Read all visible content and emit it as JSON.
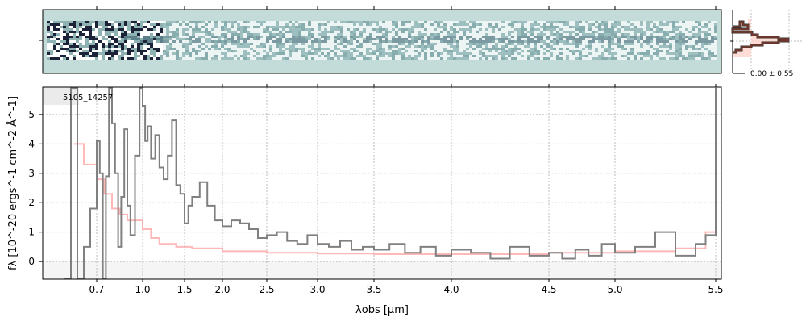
{
  "chart_data": {
    "type": "line",
    "object_label": "5105_14257",
    "xlabel": "λobs [μm]",
    "ylabel": "fλ [10^-20 ergs^-1 cm^-2 Å^-1]",
    "xlim": [
      0.55,
      5.53
    ],
    "ylim": [
      -0.6,
      5.93
    ],
    "grid": true,
    "x_ticks": [
      "0.7",
      "1.0",
      "1.5",
      "2.0",
      "2.5",
      "3.0",
      "3.5",
      "4.0",
      "4.5",
      "5.0",
      "5.5"
    ],
    "y_ticks": [
      "0",
      "1",
      "2",
      "3",
      "4",
      "5"
    ],
    "profile_label": "0.00 ± 0.55",
    "colors": {
      "data": "#808080",
      "model": "#ff9a9a",
      "twod_bg": "#c3dbd9",
      "profile": "#8b3a2a"
    },
    "series": [
      {
        "name": "spectrum",
        "x": [
          0.6,
          0.62,
          0.64,
          0.66,
          0.68,
          0.7,
          0.72,
          0.74,
          0.76,
          0.78,
          0.8,
          0.82,
          0.84,
          0.86,
          0.88,
          0.9,
          0.92,
          0.95,
          0.98,
          1.0,
          1.03,
          1.06,
          1.1,
          1.15,
          1.2,
          1.25,
          1.3,
          1.35,
          1.4,
          1.45,
          1.5,
          1.55,
          1.6,
          1.7,
          1.8,
          1.9,
          2.0,
          2.1,
          2.2,
          2.3,
          2.4,
          2.5,
          2.6,
          2.7,
          2.8,
          2.9,
          3.0,
          3.1,
          3.2,
          3.3,
          3.4,
          3.5,
          3.6,
          3.7,
          3.8,
          3.9,
          4.0,
          4.1,
          4.2,
          4.3,
          4.4,
          4.5,
          4.6,
          4.7,
          4.8,
          4.9,
          5.0,
          5.1,
          5.2,
          5.3,
          5.4,
          5.45,
          5.5
        ],
        "y": [
          -0.6,
          5.9,
          -0.6,
          0.5,
          1.8,
          4.1,
          3.0,
          -0.6,
          2.9,
          5.9,
          4.7,
          3.0,
          0.5,
          2.2,
          4.5,
          1.9,
          0.9,
          3.6,
          5.9,
          5.3,
          4.1,
          4.6,
          3.5,
          4.3,
          3.2,
          2.8,
          3.6,
          4.8,
          2.6,
          2.3,
          1.3,
          1.9,
          2.2,
          2.7,
          1.9,
          1.4,
          1.2,
          1.4,
          1.3,
          1.1,
          0.8,
          0.9,
          1.0,
          0.7,
          0.6,
          0.9,
          0.6,
          0.5,
          0.7,
          0.4,
          0.5,
          0.4,
          0.6,
          0.3,
          0.5,
          0.2,
          0.4,
          0.3,
          0.1,
          0.5,
          0.2,
          0.3,
          0.1,
          0.4,
          0.2,
          0.6,
          0.3,
          0.5,
          1.0,
          0.2,
          0.6,
          0.9,
          5.9
        ]
      },
      {
        "name": "model",
        "x": [
          0.63,
          0.66,
          0.7,
          0.75,
          0.8,
          0.85,
          0.9,
          1.0,
          1.1,
          1.2,
          1.4,
          1.6,
          1.8,
          2.0,
          2.5,
          3.0,
          3.5,
          4.0,
          4.5,
          5.0,
          5.3,
          5.45,
          5.5
        ],
        "y": [
          4.0,
          3.3,
          2.8,
          2.3,
          1.8,
          1.6,
          1.4,
          1.1,
          0.8,
          0.6,
          0.5,
          0.45,
          0.45,
          0.35,
          0.3,
          0.27,
          0.25,
          0.25,
          0.3,
          0.35,
          0.45,
          1.0,
          5.9
        ]
      }
    ]
  }
}
